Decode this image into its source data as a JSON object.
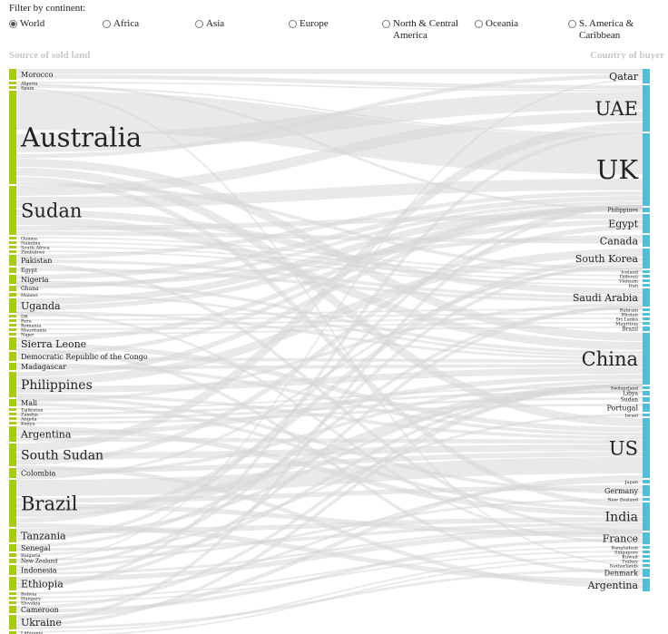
{
  "filter": {
    "label": "Filter by continent:",
    "selected": "World",
    "options": [
      "World",
      "Africa",
      "Asia",
      "Europe",
      "North & Central\nAmerica",
      "Oceania",
      "S. America &\nCaribbean"
    ]
  },
  "headers": {
    "left": "Source of sold land",
    "right": "Country of buyer"
  },
  "colors": {
    "source": "#a6cc12",
    "buyer": "#52bdd8",
    "flow": "#d7d7d7"
  },
  "sources": [
    {
      "name": "Morocco",
      "w": 12
    },
    {
      "name": "Algeria",
      "w": 3
    },
    {
      "name": "Spain",
      "w": 3
    },
    {
      "name": "Australia",
      "w": 103
    },
    {
      "name": "Sudan",
      "w": 54
    },
    {
      "name": "Guinea",
      "w": 3
    },
    {
      "name": "Namibia",
      "w": 3
    },
    {
      "name": "South Africa",
      "w": 3
    },
    {
      "name": "Zimbabwe",
      "w": 3
    },
    {
      "name": "Pakistan",
      "w": 12
    },
    {
      "name": "Egypt",
      "w": 6
    },
    {
      "name": "Nigeria",
      "w": 10
    },
    {
      "name": "Ghana",
      "w": 6
    },
    {
      "name": "Malawi",
      "w": 4
    },
    {
      "name": "Uganda",
      "w": 16
    },
    {
      "name": "DR",
      "w": 3
    },
    {
      "name": "Peru",
      "w": 3
    },
    {
      "name": "Romania",
      "w": 3
    },
    {
      "name": "Mauritania",
      "w": 3
    },
    {
      "name": "Niger",
      "w": 3
    },
    {
      "name": "Sierra Leone",
      "w": 14
    },
    {
      "name": "Democratic Republic of the Congo",
      "w": 10
    },
    {
      "name": "Madagascar",
      "w": 8
    },
    {
      "name": "Philippines",
      "w": 28
    },
    {
      "name": "Mali",
      "w": 8
    },
    {
      "name": "Tajikistan",
      "w": 3
    },
    {
      "name": "Zambia",
      "w": 3
    },
    {
      "name": "Angola",
      "w": 3
    },
    {
      "name": "Kenya",
      "w": 3
    },
    {
      "name": "Argentina",
      "w": 17
    },
    {
      "name": "South Sudan",
      "w": 25
    },
    {
      "name": "Colombia",
      "w": 11
    },
    {
      "name": "Brazil",
      "w": 52
    },
    {
      "name": "Tanzania",
      "w": 15
    },
    {
      "name": "Senegal",
      "w": 8
    },
    {
      "name": "Bulgaria",
      "w": 4
    },
    {
      "name": "New Zealand",
      "w": 5
    },
    {
      "name": "Indonesia",
      "w": 11
    },
    {
      "name": "Ethiopia",
      "w": 15
    },
    {
      "name": "Bolivia",
      "w": 3
    },
    {
      "name": "Hungary",
      "w": 3
    },
    {
      "name": "Slovakia",
      "w": 3
    },
    {
      "name": "Cameroon",
      "w": 8
    },
    {
      "name": "Ukraine",
      "w": 16
    },
    {
      "name": "Lithuania",
      "w": 3
    },
    {
      "name": "Zambia",
      "w": 3
    }
  ],
  "buyers": [
    {
      "name": "Qatar",
      "w": 16
    },
    {
      "name": "UAE",
      "w": 51
    },
    {
      "name": "UK",
      "w": 80
    },
    {
      "name": "Philippines",
      "w": 5
    },
    {
      "name": "Egypt",
      "w": 21
    },
    {
      "name": "Canada",
      "w": 13
    },
    {
      "name": "South Korea",
      "w": 22
    },
    {
      "name": "Iceland",
      "w": 3
    },
    {
      "name": "Djibouti",
      "w": 3
    },
    {
      "name": "Vietnam",
      "w": 3
    },
    {
      "name": "Iran",
      "w": 3
    },
    {
      "name": "Saudi Arabia",
      "w": 20
    },
    {
      "name": "Bahrain",
      "w": 3
    },
    {
      "name": "Bhutan",
      "w": 3
    },
    {
      "name": "Sri Lanka",
      "w": 3
    },
    {
      "name": "Mauritius",
      "w": 3
    },
    {
      "name": "Brazil",
      "w": 5
    },
    {
      "name": "China",
      "w": 57
    },
    {
      "name": "Switzerland",
      "w": 3
    },
    {
      "name": "Libya",
      "w": 5
    },
    {
      "name": "Sudan",
      "w": 5
    },
    {
      "name": "Portugal",
      "w": 9
    },
    {
      "name": "Israel",
      "w": 3
    },
    {
      "name": "US",
      "w": 66
    },
    {
      "name": "Japan",
      "w": 4
    },
    {
      "name": "Germany",
      "w": 12
    },
    {
      "name": "New Zealand",
      "w": 3
    },
    {
      "name": "India",
      "w": 31
    },
    {
      "name": "France",
      "w": 13
    },
    {
      "name": "Bangladesh",
      "w": 3
    },
    {
      "name": "Singapore",
      "w": 3
    },
    {
      "name": "Kuwait",
      "w": 3
    },
    {
      "name": "Turkey",
      "w": 3
    },
    {
      "name": "Netherlands",
      "w": 3
    },
    {
      "name": "Denmark",
      "w": 9
    },
    {
      "name": "Argentina",
      "w": 14
    }
  ],
  "flows": [
    [
      0,
      0,
      6
    ],
    [
      0,
      1,
      5
    ],
    [
      1,
      1,
      2
    ],
    [
      2,
      2,
      2
    ],
    [
      3,
      2,
      48
    ],
    [
      3,
      1,
      22
    ],
    [
      3,
      0,
      5
    ],
    [
      3,
      17,
      10
    ],
    [
      3,
      23,
      10
    ],
    [
      3,
      27,
      6
    ],
    [
      4,
      1,
      12
    ],
    [
      4,
      2,
      14
    ],
    [
      4,
      11,
      8
    ],
    [
      4,
      17,
      10
    ],
    [
      4,
      4,
      6
    ],
    [
      9,
      2,
      5
    ],
    [
      9,
      11,
      4
    ],
    [
      10,
      11,
      4
    ],
    [
      11,
      2,
      6
    ],
    [
      11,
      17,
      4
    ],
    [
      12,
      2,
      4
    ],
    [
      13,
      17,
      3
    ],
    [
      14,
      2,
      8
    ],
    [
      14,
      4,
      6
    ],
    [
      14,
      17,
      3
    ],
    [
      20,
      2,
      6
    ],
    [
      20,
      23,
      6
    ],
    [
      21,
      2,
      5
    ],
    [
      21,
      17,
      4
    ],
    [
      22,
      23,
      4
    ],
    [
      22,
      17,
      4
    ],
    [
      23,
      2,
      6
    ],
    [
      23,
      6,
      10
    ],
    [
      23,
      17,
      8
    ],
    [
      23,
      23,
      4
    ],
    [
      24,
      11,
      4
    ],
    [
      24,
      27,
      4
    ],
    [
      29,
      27,
      6
    ],
    [
      29,
      17,
      6
    ],
    [
      29,
      23,
      5
    ],
    [
      30,
      1,
      10
    ],
    [
      30,
      23,
      8
    ],
    [
      30,
      4,
      6
    ],
    [
      31,
      23,
      6
    ],
    [
      31,
      17,
      4
    ],
    [
      32,
      23,
      20
    ],
    [
      32,
      25,
      6
    ],
    [
      32,
      28,
      6
    ],
    [
      32,
      17,
      10
    ],
    [
      32,
      6,
      6
    ],
    [
      32,
      35,
      6
    ],
    [
      33,
      27,
      6
    ],
    [
      33,
      17,
      4
    ],
    [
      33,
      2,
      4
    ],
    [
      34,
      11,
      4
    ],
    [
      34,
      27,
      4
    ],
    [
      36,
      26,
      3
    ],
    [
      36,
      0,
      2
    ],
    [
      37,
      6,
      4
    ],
    [
      37,
      17,
      4
    ],
    [
      37,
      27,
      3
    ],
    [
      38,
      27,
      6
    ],
    [
      38,
      11,
      4
    ],
    [
      38,
      1,
      4
    ],
    [
      42,
      17,
      4
    ],
    [
      42,
      28,
      4
    ],
    [
      43,
      23,
      5
    ],
    [
      43,
      2,
      4
    ],
    [
      43,
      17,
      4
    ],
    [
      43,
      34,
      3
    ],
    [
      5,
      7,
      2
    ],
    [
      6,
      8,
      2
    ],
    [
      7,
      9,
      2
    ],
    [
      8,
      10,
      2
    ],
    [
      15,
      12,
      2
    ],
    [
      16,
      13,
      2
    ],
    [
      17,
      14,
      2
    ],
    [
      18,
      15,
      2
    ],
    [
      19,
      16,
      2
    ],
    [
      25,
      18,
      2
    ],
    [
      26,
      19,
      3
    ],
    [
      27,
      20,
      3
    ],
    [
      28,
      21,
      3
    ],
    [
      35,
      22,
      3
    ],
    [
      39,
      24,
      3
    ],
    [
      40,
      29,
      2
    ],
    [
      41,
      30,
      2
    ],
    [
      44,
      31,
      2
    ],
    [
      45,
      32,
      2
    ],
    [
      2,
      33,
      2
    ],
    [
      1,
      3,
      3
    ],
    [
      9,
      27,
      4
    ],
    [
      14,
      28,
      3
    ],
    [
      20,
      34,
      4
    ],
    [
      30,
      35,
      5
    ],
    [
      31,
      6,
      3
    ],
    [
      11,
      5,
      5
    ],
    [
      4,
      5,
      5
    ],
    [
      23,
      25,
      4
    ],
    [
      3,
      6,
      4
    ]
  ]
}
